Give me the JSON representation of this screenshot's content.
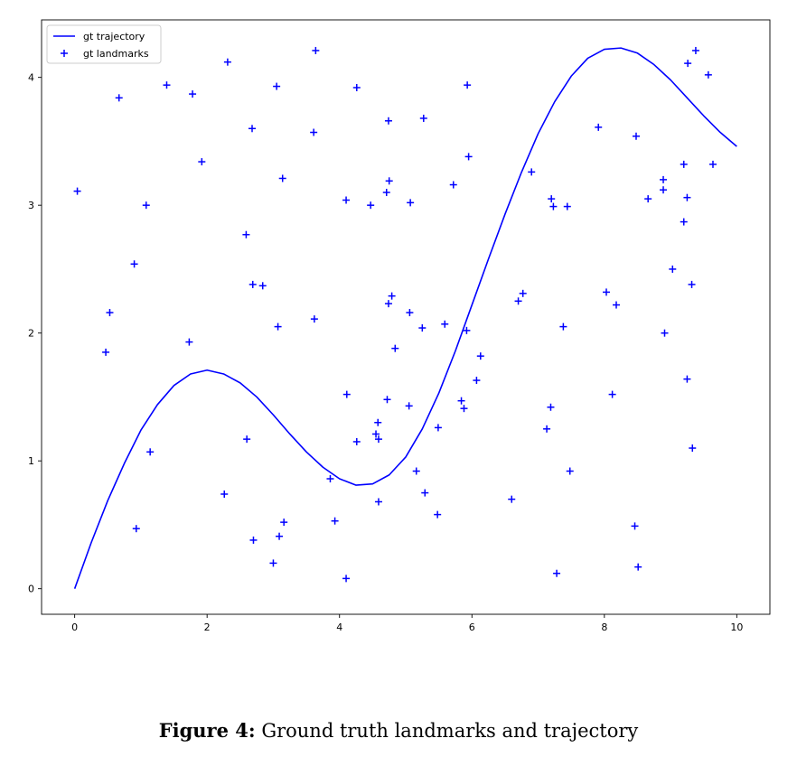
{
  "chart_data": {
    "type": "scatter",
    "title": "",
    "xlabel": "",
    "ylabel": "",
    "xlim": [
      -0.5,
      10.5
    ],
    "ylim": [
      -0.2,
      4.45
    ],
    "x_ticks": [
      0,
      2,
      4,
      6,
      8,
      10
    ],
    "y_ticks": [
      0,
      1,
      2,
      3,
      4
    ],
    "grid": false,
    "legend_position": "top-left",
    "series": [
      {
        "name": "gt trajectory",
        "kind": "line",
        "color": "#0000ff",
        "points": [
          [
            0.0,
            0.0
          ],
          [
            0.25,
            0.36
          ],
          [
            0.5,
            0.69
          ],
          [
            0.75,
            0.98
          ],
          [
            1.0,
            1.24
          ],
          [
            1.25,
            1.44
          ],
          [
            1.5,
            1.59
          ],
          [
            1.75,
            1.68
          ],
          [
            2.0,
            1.71
          ],
          [
            2.25,
            1.68
          ],
          [
            2.5,
            1.61
          ],
          [
            2.75,
            1.5
          ],
          [
            3.0,
            1.36
          ],
          [
            3.25,
            1.21
          ],
          [
            3.5,
            1.07
          ],
          [
            3.75,
            0.95
          ],
          [
            4.0,
            0.86
          ],
          [
            4.25,
            0.81
          ],
          [
            4.5,
            0.82
          ],
          [
            4.75,
            0.89
          ],
          [
            5.0,
            1.03
          ],
          [
            5.25,
            1.25
          ],
          [
            5.5,
            1.53
          ],
          [
            5.75,
            1.86
          ],
          [
            6.0,
            2.22
          ],
          [
            6.25,
            2.58
          ],
          [
            6.5,
            2.93
          ],
          [
            6.75,
            3.26
          ],
          [
            7.0,
            3.56
          ],
          [
            7.25,
            3.81
          ],
          [
            7.5,
            4.01
          ],
          [
            7.75,
            4.15
          ],
          [
            8.0,
            4.22
          ],
          [
            8.25,
            4.23
          ],
          [
            8.5,
            4.19
          ],
          [
            8.75,
            4.1
          ],
          [
            9.0,
            3.98
          ],
          [
            9.25,
            3.84
          ],
          [
            9.5,
            3.7
          ],
          [
            9.75,
            3.57
          ],
          [
            10.0,
            3.46
          ]
        ]
      },
      {
        "name": "gt landmarks",
        "kind": "scatter",
        "marker": "+",
        "color": "#0000ff",
        "points": [
          [
            0.04,
            3.11
          ],
          [
            0.47,
            1.85
          ],
          [
            0.53,
            2.16
          ],
          [
            0.67,
            3.84
          ],
          [
            0.93,
            0.47
          ],
          [
            0.9,
            2.54
          ],
          [
            1.08,
            3.0
          ],
          [
            1.14,
            1.07
          ],
          [
            1.39,
            3.94
          ],
          [
            1.73,
            1.93
          ],
          [
            1.78,
            3.87
          ],
          [
            1.92,
            3.34
          ],
          [
            2.26,
            0.74
          ],
          [
            2.31,
            4.12
          ],
          [
            2.59,
            2.77
          ],
          [
            2.6,
            1.17
          ],
          [
            2.68,
            3.6
          ],
          [
            2.69,
            2.38
          ],
          [
            2.7,
            0.38
          ],
          [
            2.84,
            2.37
          ],
          [
            3.0,
            0.2
          ],
          [
            3.05,
            3.93
          ],
          [
            3.07,
            2.05
          ],
          [
            3.09,
            0.41
          ],
          [
            3.14,
            3.21
          ],
          [
            3.16,
            0.52
          ],
          [
            3.61,
            3.57
          ],
          [
            3.62,
            2.11
          ],
          [
            3.64,
            4.21
          ],
          [
            3.86,
            0.86
          ],
          [
            3.93,
            0.53
          ],
          [
            4.1,
            3.04
          ],
          [
            4.11,
            1.52
          ],
          [
            4.1,
            0.08
          ],
          [
            4.26,
            3.92
          ],
          [
            4.26,
            1.15
          ],
          [
            4.47,
            3.0
          ],
          [
            4.55,
            1.21
          ],
          [
            4.58,
            1.3
          ],
          [
            4.59,
            1.17
          ],
          [
            4.59,
            0.68
          ],
          [
            4.71,
            3.1
          ],
          [
            4.72,
            1.48
          ],
          [
            4.74,
            3.66
          ],
          [
            4.74,
            2.23
          ],
          [
            4.75,
            3.19
          ],
          [
            4.79,
            2.29
          ],
          [
            4.84,
            1.88
          ],
          [
            5.05,
            1.43
          ],
          [
            5.06,
            2.16
          ],
          [
            5.07,
            3.02
          ],
          [
            5.16,
            0.92
          ],
          [
            5.25,
            2.04
          ],
          [
            5.27,
            3.68
          ],
          [
            5.29,
            0.75
          ],
          [
            5.48,
            0.58
          ],
          [
            5.49,
            1.26
          ],
          [
            5.59,
            2.07
          ],
          [
            5.72,
            3.16
          ],
          [
            5.84,
            1.47
          ],
          [
            5.88,
            1.41
          ],
          [
            5.92,
            2.02
          ],
          [
            5.93,
            3.94
          ],
          [
            5.95,
            3.38
          ],
          [
            6.07,
            1.63
          ],
          [
            6.13,
            1.82
          ],
          [
            6.6,
            0.7
          ],
          [
            6.7,
            2.25
          ],
          [
            6.77,
            2.31
          ],
          [
            6.9,
            3.26
          ],
          [
            7.13,
            1.25
          ],
          [
            7.19,
            1.42
          ],
          [
            7.2,
            3.05
          ],
          [
            7.23,
            2.99
          ],
          [
            7.28,
            0.12
          ],
          [
            7.38,
            2.05
          ],
          [
            7.44,
            2.99
          ],
          [
            7.48,
            0.92
          ],
          [
            7.91,
            3.61
          ],
          [
            8.03,
            2.32
          ],
          [
            8.12,
            1.52
          ],
          [
            8.18,
            2.22
          ],
          [
            8.46,
            0.49
          ],
          [
            8.48,
            3.54
          ],
          [
            8.51,
            0.17
          ],
          [
            8.66,
            3.05
          ],
          [
            8.89,
            3.2
          ],
          [
            8.89,
            3.12
          ],
          [
            8.91,
            2.0
          ],
          [
            9.03,
            2.5
          ],
          [
            9.2,
            2.87
          ],
          [
            9.2,
            3.32
          ],
          [
            9.25,
            1.64
          ],
          [
            9.25,
            3.06
          ],
          [
            9.26,
            4.11
          ],
          [
            9.32,
            2.38
          ],
          [
            9.33,
            1.1
          ],
          [
            9.38,
            4.21
          ],
          [
            9.57,
            4.02
          ],
          [
            9.64,
            3.32
          ]
        ]
      }
    ]
  },
  "caption": {
    "label": "Figure 4:",
    "text": "Ground truth landmarks and trajectory"
  }
}
